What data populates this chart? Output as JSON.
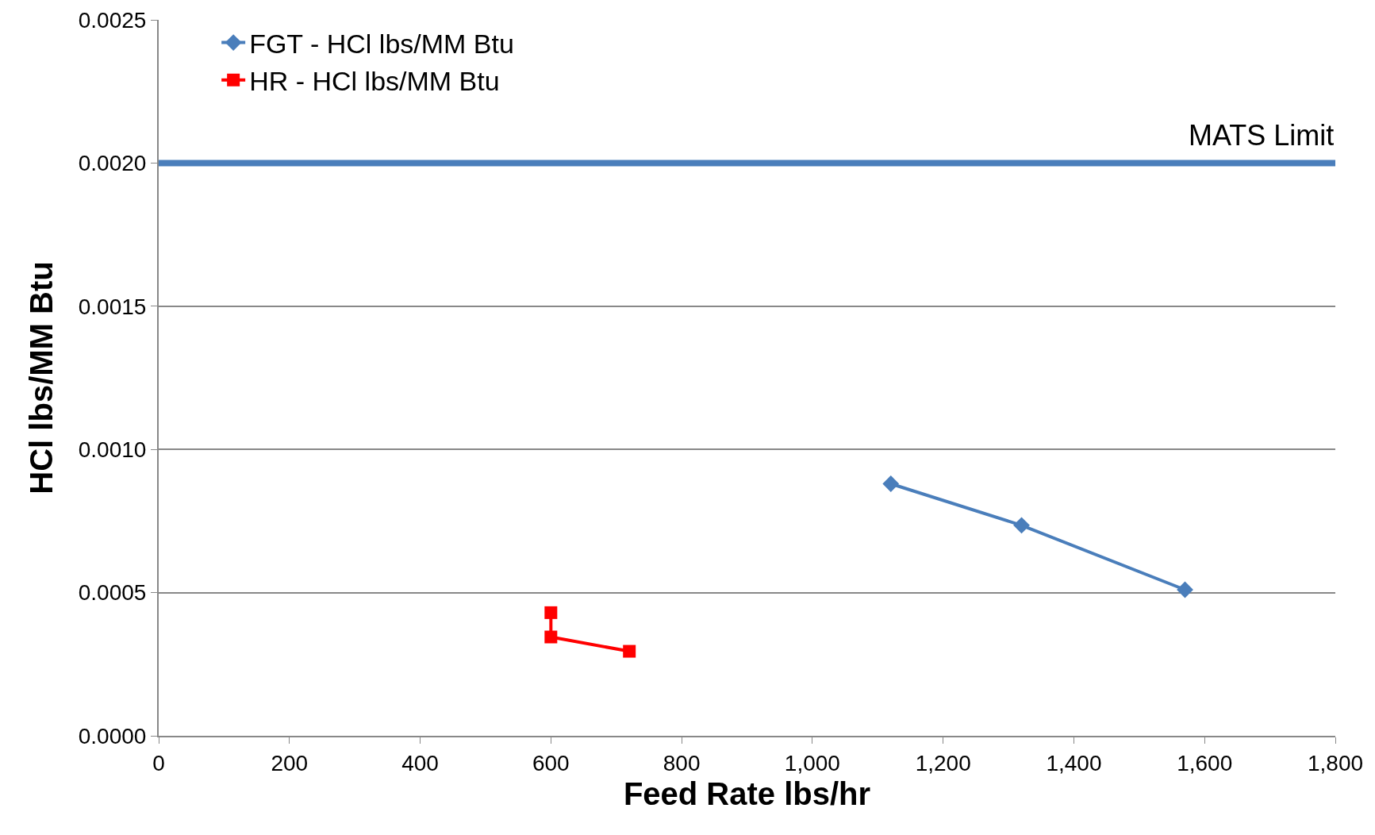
{
  "chart_data": {
    "type": "line",
    "xlabel": "Feed Rate lbs/hr",
    "ylabel": "HCl lbs/MM Btu",
    "xlim": [
      0,
      1800
    ],
    "xticks": [
      0,
      {
        "value": 200,
        "label": "200"
      },
      {
        "value": 400,
        "label": "400"
      },
      {
        "value": 600,
        "label": "600"
      },
      {
        "value": 800,
        "label": "800"
      },
      {
        "value": 1000,
        "label": "1,000"
      },
      {
        "value": 1200,
        "label": "1,200"
      },
      {
        "value": 1400,
        "label": "1,400"
      },
      {
        "value": 1600,
        "label": "1,600"
      },
      {
        "value": 1800,
        "label": "1,800"
      }
    ],
    "ylim": [
      0,
      0.0025
    ],
    "yticks": [
      {
        "value": 0,
        "label": "0.0000"
      },
      {
        "value": 0.0005,
        "label": "0.0005"
      },
      {
        "value": 0.001,
        "label": "0.0010"
      },
      {
        "value": 0.0015,
        "label": "0.0015"
      },
      {
        "value": 0.002,
        "label": "0.0020"
      },
      {
        "value": 0.0025,
        "label": "0.0025"
      }
    ],
    "grid": "y",
    "legend": "top left",
    "line_style": "solid",
    "series": [
      {
        "name": "FGT - HCl lbs/MM Btu",
        "color": "#4a7ebb",
        "marker": "diamond",
        "x": [
          1120,
          1320,
          1570
        ],
        "values": [
          0.00088,
          0.000735,
          0.00051
        ]
      },
      {
        "name": "HR - HCl lbs/MM Btu",
        "color": "#ff0000",
        "marker": "square",
        "x": [
          600,
          600,
          720
        ],
        "values": [
          0.00043,
          0.000345,
          0.000295
        ]
      }
    ],
    "ref_lines": [
      {
        "axis": "y",
        "value": 0.002,
        "label": "MATS Limit",
        "color": "#4a7ebb"
      }
    ]
  }
}
